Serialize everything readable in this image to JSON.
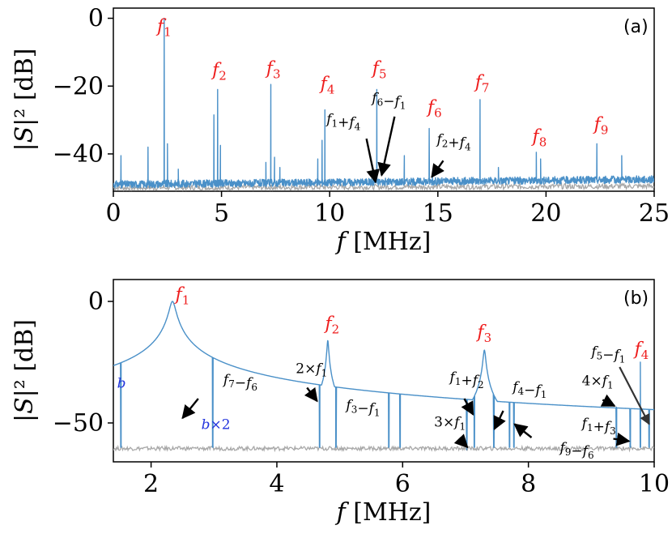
{
  "figure": {
    "panels": [
      "a",
      "b"
    ]
  },
  "colors": {
    "signal": "#4a90c8",
    "background_trace": "#a8a8a8",
    "peak_label": "#ee1c1c",
    "blue_label": "#2233dd"
  },
  "chart_data": [
    {
      "type": "line",
      "panel_label": "(a)",
      "xlabel": "f [MHz]",
      "ylabel": "|S|² [dB]",
      "xlim": [
        0,
        25
      ],
      "ylim": [
        -51,
        3
      ],
      "xticks": [
        0,
        5,
        10,
        15,
        20,
        25
      ],
      "yticks": [
        0,
        -20,
        -40
      ],
      "noise_floor_db": -48.5,
      "series": [
        {
          "name": "signal",
          "peaks": [
            {
              "x": 0.35,
              "y": -40.5
            },
            {
              "x": 1.6,
              "y": -38.0
            },
            {
              "x": 2.35,
              "y": 0.0
            },
            {
              "x": 2.5,
              "y": -37.0
            },
            {
              "x": 3.0,
              "y": -44.5
            },
            {
              "x": 4.65,
              "y": -28.5
            },
            {
              "x": 4.82,
              "y": -21.0
            },
            {
              "x": 4.95,
              "y": -37.5
            },
            {
              "x": 7.05,
              "y": -42.5
            },
            {
              "x": 7.28,
              "y": -19.5
            },
            {
              "x": 7.45,
              "y": -41.0
            },
            {
              "x": 7.7,
              "y": -44.0
            },
            {
              "x": 9.45,
              "y": -41.5
            },
            {
              "x": 9.65,
              "y": -36.0
            },
            {
              "x": 9.78,
              "y": -27.0
            },
            {
              "x": 12.1,
              "y": -47.5
            },
            {
              "x": 12.18,
              "y": -21.0
            },
            {
              "x": 13.45,
              "y": -40.5
            },
            {
              "x": 14.6,
              "y": -32.5
            },
            {
              "x": 14.75,
              "y": -47.0
            },
            {
              "x": 16.95,
              "y": -24.0
            },
            {
              "x": 17.8,
              "y": -44.0
            },
            {
              "x": 19.55,
              "y": -39.5
            },
            {
              "x": 19.75,
              "y": -41.5
            },
            {
              "x": 22.35,
              "y": -37.0
            },
            {
              "x": 23.5,
              "y": -40.5
            }
          ]
        },
        {
          "name": "background",
          "level_db": -50.0
        }
      ],
      "peak_labels": [
        {
          "text": "f",
          "sub": "1",
          "x": 2.35,
          "y": -4.0
        },
        {
          "text": "f",
          "sub": "2",
          "x": 4.9,
          "y": -17.0
        },
        {
          "text": "f",
          "sub": "3",
          "x": 7.4,
          "y": -16.5
        },
        {
          "text": "f",
          "sub": "4",
          "x": 9.9,
          "y": -21.0
        },
        {
          "text": "f",
          "sub": "5",
          "x": 12.3,
          "y": -16.5
        },
        {
          "text": "f",
          "sub": "6",
          "x": 14.85,
          "y": -28.0
        },
        {
          "text": "f",
          "sub": "7",
          "x": 17.05,
          "y": -20.5
        },
        {
          "text": "f",
          "sub": "8",
          "x": 19.7,
          "y": -36.5
        },
        {
          "text": "f",
          "sub": "9",
          "x": 22.55,
          "y": -33.0
        }
      ],
      "annotations": [
        {
          "label": "f1+f4",
          "parts": [
            "f",
            "1",
            "+",
            "f",
            "4"
          ],
          "text_x": 9.85,
          "text_y": -31.0,
          "arrow_from": [
            11.7,
            -35.5
          ],
          "arrow_to": [
            12.12,
            -48.3
          ]
        },
        {
          "label": "f6−f1",
          "parts": [
            "f",
            "6",
            "−",
            "f",
            "1"
          ],
          "text_x": 11.95,
          "text_y": -24.8,
          "arrow_from": [
            13.0,
            -29.0
          ],
          "arrow_to": [
            12.4,
            -46.3
          ]
        },
        {
          "label": "f2+f4",
          "parts": [
            "f",
            "2",
            "+",
            "f",
            "4"
          ],
          "text_x": 14.95,
          "text_y": -37.0,
          "arrow_from": [
            15.25,
            -42.0
          ],
          "arrow_to": [
            14.72,
            -46.8
          ]
        }
      ]
    },
    {
      "type": "line",
      "panel_label": "(b)",
      "xlabel": "f [MHz]",
      "ylabel": "|S|² [dB]",
      "xlim": [
        1.4,
        10
      ],
      "ylim": [
        -66,
        9
      ],
      "xticks": [
        2,
        4,
        6,
        8,
        10
      ],
      "yticks": [
        0,
        -50
      ],
      "noise_floor_db": -61.0,
      "series": [
        {
          "name": "signal",
          "lorentz_peaks": [
            {
              "x": 2.34,
              "y": 0.0,
              "w": 0.045
            },
            {
              "x": 4.81,
              "y": -16.0,
              "w": 0.012
            },
            {
              "x": 7.3,
              "y": -20.0,
              "w": 0.018
            }
          ],
          "sharp_peaks": [
            {
              "x": 1.52,
              "y": -40.0
            },
            {
              "x": 2.98,
              "y": -58.5
            },
            {
              "x": 4.68,
              "y": -39.0
            },
            {
              "x": 4.94,
              "y": -49.5
            },
            {
              "x": 5.78,
              "y": -56.0
            },
            {
              "x": 5.96,
              "y": -51.5
            },
            {
              "x": 7.02,
              "y": -61.0
            },
            {
              "x": 7.14,
              "y": -48.0
            },
            {
              "x": 7.45,
              "y": -54.0
            },
            {
              "x": 7.7,
              "y": -47.0
            },
            {
              "x": 7.77,
              "y": -49.0
            },
            {
              "x": 9.4,
              "y": -43.5
            },
            {
              "x": 9.62,
              "y": -51.5
            },
            {
              "x": 9.78,
              "y": -25.0
            },
            {
              "x": 9.92,
              "y": -51.0
            }
          ]
        },
        {
          "name": "background",
          "level_db": -60.5
        }
      ],
      "peak_labels": [
        {
          "text": "f",
          "sub": "1",
          "x": 2.5,
          "y": 0.5
        },
        {
          "text": "f",
          "sub": "2",
          "x": 4.88,
          "y": -11.5
        },
        {
          "text": "f",
          "sub": "3",
          "x": 7.3,
          "y": -15.0
        },
        {
          "text": "f",
          "sub": "4",
          "x": 9.8,
          "y": -22.0
        }
      ],
      "extra_labels": [
        {
          "label": "b",
          "parts": [
            "b"
          ],
          "x": 1.53,
          "y": -35.5
        },
        {
          "label": "b×2",
          "parts": [
            "b×2"
          ],
          "x": 3.03,
          "y": -52.5
        }
      ],
      "annotations": [
        {
          "label": "f7−f6",
          "parts": [
            "f",
            "7",
            "−",
            "f",
            "6"
          ],
          "text_x": 3.15,
          "text_y": -34.0,
          "arrow_from": [
            2.75,
            -40.0
          ],
          "arrow_to": [
            2.5,
            -48.0
          ]
        },
        {
          "label": "2×f1",
          "parts": [
            "2×",
            "f",
            "1"
          ],
          "text_x": 4.3,
          "text_y": -29.5,
          "arrow_from": [
            4.48,
            -35.5
          ],
          "arrow_to": [
            4.64,
            -41.0
          ]
        },
        {
          "label": "f3−f1",
          "parts": [
            "f",
            "3",
            "−",
            "f",
            "1"
          ],
          "text_x": 5.1,
          "text_y": -44.5,
          "arrow_from": null,
          "arrow_to": null
        },
        {
          "label": "f1+f2",
          "parts": [
            "f",
            "1",
            "+",
            "f",
            "2"
          ],
          "text_x": 6.75,
          "text_y": -33.0,
          "arrow_from": [
            6.98,
            -40.0
          ],
          "arrow_to": [
            7.12,
            -46.5
          ]
        },
        {
          "label": "3×f1",
          "parts": [
            "3×",
            "f",
            "1"
          ],
          "text_x": 6.5,
          "text_y": -51.5,
          "arrow_from": [
            6.9,
            -56.5
          ],
          "arrow_to": [
            7.03,
            -60.0
          ]
        },
        {
          "label": "f4−f1",
          "parts": [
            "f",
            "4",
            "−",
            "f",
            "1"
          ],
          "text_x": 7.75,
          "text_y": -37.0,
          "arrow_from": [
            7.6,
            -45.0
          ],
          "arrow_to": [
            7.46,
            -52.5
          ]
        },
        {
          "label": "f9−f6",
          "parts": [
            "f",
            "9",
            "−",
            "f",
            "6"
          ],
          "text_x": 8.5,
          "text_y": -62.0,
          "arrow_from": [
            8.05,
            -56.0
          ],
          "arrow_to": [
            7.78,
            -50.5
          ]
        },
        {
          "label": "f5−f1",
          "parts": [
            "f",
            "5",
            "−",
            "f",
            "1"
          ],
          "text_x": 9.0,
          "text_y": -22.5,
          "arrow_from": [
            9.45,
            -27.0
          ],
          "arrow_to": [
            9.92,
            -50.5
          ]
        },
        {
          "label": "4×f1",
          "parts": [
            "4×",
            "f",
            "1"
          ],
          "text_x": 8.85,
          "text_y": -34.5,
          "arrow_from": [
            9.18,
            -40.5
          ],
          "arrow_to": [
            9.37,
            -43.0
          ]
        },
        {
          "label": "f1+f3",
          "parts": [
            "f",
            "1",
            "+",
            "f",
            "3"
          ],
          "text_x": 8.85,
          "text_y": -52.0,
          "arrow_from": [
            9.35,
            -56.5
          ],
          "arrow_to": [
            9.6,
            -57.5
          ]
        }
      ]
    }
  ]
}
